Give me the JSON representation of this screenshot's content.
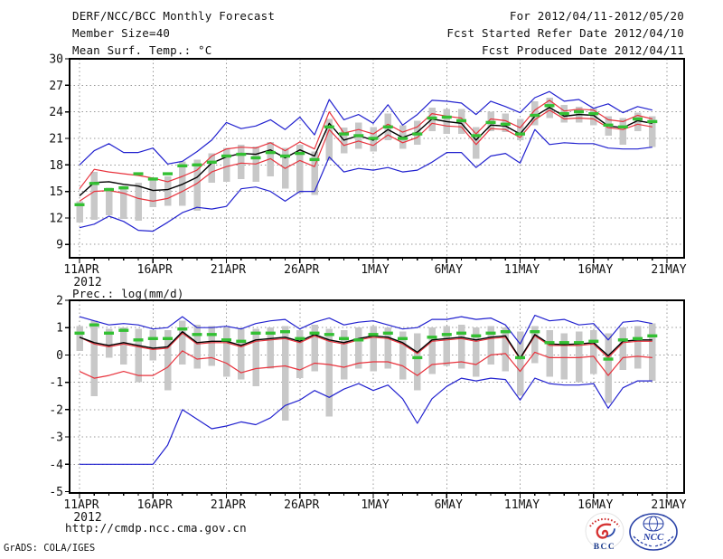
{
  "header": {
    "title": "DERF/NCC/BCC Monthly Forecast",
    "member_size": "Member Size=40",
    "for_range": "For 2012/04/11-2012/05/20",
    "fcst_started": "Fcst Started Refer Date 2012/04/10",
    "fcst_produced": "Fcst Produced Date 2012/04/11"
  },
  "footer": {
    "url": "http://cmdp.ncc.cma.gov.cn",
    "grads_credit": "GrADS: COLA/IGES",
    "logos": [
      {
        "label": "BCC"
      },
      {
        "label": "NCC"
      }
    ]
  },
  "colors": {
    "line_blue": "#2121cf",
    "line_red": "#e8323c",
    "line_black": "#000000",
    "dash_green": "#33c033",
    "spread_bar": "#c8c8c8",
    "grid": "#999999",
    "frame": "#000000"
  },
  "chart_data": [
    {
      "type": "line",
      "name": "temperature",
      "title": "Mean Surf. Temp.: °C",
      "x_year_label": "2012",
      "x_tick_labels": [
        "11APR",
        "16APR",
        "21APR",
        "26APR",
        "1MAY",
        "6MAY",
        "11MAY",
        "16MAY",
        "21MAY"
      ],
      "x_tick_days": [
        0,
        5,
        10,
        15,
        20,
        25,
        30,
        35,
        40
      ],
      "n_days": 40,
      "ylim": [
        7.49,
        30
      ],
      "yticks": [
        9,
        12,
        15,
        18,
        21,
        24,
        27,
        30
      ],
      "grid": true,
      "legend_position": "none",
      "series": [
        {
          "name": "ensemble-max",
          "color": "#2121cf",
          "width": 1.2,
          "values": [
            18.0,
            19.6,
            20.4,
            19.4,
            19.4,
            19.9,
            18.1,
            18.4,
            19.5,
            20.8,
            22.8,
            22.1,
            22.4,
            23.1,
            22.0,
            23.4,
            21.4,
            25.4,
            23.1,
            23.7,
            22.7,
            24.8,
            22.5,
            23.7,
            25.3,
            25.2,
            25.0,
            23.7,
            25.2,
            24.6,
            23.9,
            25.6,
            26.3,
            25.2,
            25.4,
            24.4,
            24.9,
            23.9,
            24.6,
            24.2
          ]
        },
        {
          "name": "ensemble-min",
          "color": "#2121cf",
          "width": 1.2,
          "values": [
            10.9,
            11.3,
            12.2,
            11.6,
            10.6,
            10.5,
            11.5,
            12.6,
            13.2,
            13.0,
            13.3,
            15.3,
            15.5,
            15.0,
            13.9,
            15.0,
            15.0,
            18.9,
            17.2,
            17.6,
            17.4,
            17.7,
            17.2,
            17.4,
            18.3,
            19.4,
            19.4,
            17.7,
            19.0,
            19.3,
            18.2,
            22.0,
            20.3,
            20.5,
            20.4,
            20.4,
            19.9,
            19.8,
            19.8,
            20.0
          ]
        },
        {
          "name": "upper-quartile",
          "color": "#e8323c",
          "width": 1.2,
          "values": [
            15.3,
            17.5,
            17.2,
            17.0,
            16.8,
            16.5,
            16.1,
            16.7,
            17.4,
            19.0,
            19.8,
            20.0,
            19.9,
            20.5,
            19.6,
            20.6,
            19.8,
            24.0,
            21.6,
            22.0,
            21.5,
            22.6,
            21.7,
            22.3,
            23.8,
            23.5,
            23.3,
            21.5,
            23.2,
            23.0,
            22.2,
            24.2,
            25.3,
            24.1,
            24.3,
            24.2,
            23.1,
            22.9,
            23.6,
            23.2
          ]
        },
        {
          "name": "lower-quartile",
          "color": "#e8323c",
          "width": 1.2,
          "values": [
            13.9,
            15.0,
            15.1,
            14.8,
            14.2,
            13.9,
            14.2,
            15.0,
            15.9,
            17.2,
            17.8,
            18.2,
            18.1,
            18.7,
            17.6,
            18.5,
            17.8,
            22.0,
            20.2,
            20.7,
            20.2,
            21.4,
            20.5,
            21.1,
            22.7,
            22.4,
            22.3,
            20.3,
            22.1,
            22.0,
            21.1,
            23.1,
            24.2,
            23.2,
            23.3,
            23.2,
            22.2,
            22.0,
            22.6,
            22.3
          ]
        },
        {
          "name": "ensemble-mean",
          "color": "#000000",
          "width": 1.4,
          "values": [
            14.5,
            16.0,
            16.1,
            15.8,
            15.6,
            15.1,
            15.2,
            15.8,
            16.6,
            18.2,
            18.9,
            19.3,
            19.2,
            19.7,
            18.8,
            19.7,
            19.0,
            22.7,
            20.8,
            21.3,
            20.8,
            22.0,
            21.1,
            21.7,
            23.2,
            22.9,
            22.7,
            20.8,
            22.5,
            22.4,
            21.5,
            23.5,
            24.5,
            23.5,
            23.7,
            23.6,
            22.4,
            22.2,
            23.0,
            22.7
          ]
        },
        {
          "name": "ensemble-median",
          "color": "#33c033",
          "style": "dashes",
          "width": 3.4,
          "values": [
            13.5,
            15.9,
            15.2,
            15.4,
            17.0,
            16.4,
            17.0,
            17.9,
            18.0,
            18.3,
            19.0,
            19.2,
            18.8,
            19.4,
            19.0,
            19.3,
            18.6,
            22.3,
            21.5,
            21.3,
            21.0,
            22.3,
            21.0,
            21.5,
            23.3,
            23.4,
            23.0,
            21.3,
            22.8,
            22.6,
            21.5,
            23.6,
            24.7,
            23.8,
            24.0,
            23.8,
            22.5,
            22.3,
            23.2,
            22.9
          ]
        }
      ],
      "bars": {
        "name": "member-spread",
        "low": [
          11.5,
          11.8,
          12.3,
          11.9,
          11.7,
          13.2,
          13.4,
          13.4,
          12.8,
          16.0,
          16.1,
          16.4,
          16.1,
          16.7,
          15.3,
          14.8,
          14.6,
          18.5,
          19.3,
          19.8,
          19.5,
          20.8,
          19.8,
          20.3,
          21.8,
          21.5,
          21.5,
          18.7,
          21.8,
          21.7,
          20.8,
          22.5,
          23.3,
          22.8,
          22.8,
          22.5,
          21.3,
          20.3,
          21.8,
          20.0
        ],
        "high": [
          13.9,
          17.2,
          15.4,
          15.6,
          16.0,
          16.3,
          16.7,
          18.4,
          18.6,
          19.3,
          19.9,
          20.3,
          20.1,
          20.6,
          19.9,
          20.3,
          19.5,
          23.2,
          22.2,
          22.8,
          22.3,
          23.8,
          22.5,
          23.0,
          24.5,
          24.3,
          24.3,
          22.3,
          24.0,
          23.8,
          23.2,
          25.2,
          25.6,
          24.8,
          24.6,
          24.4,
          23.5,
          23.3,
          23.9,
          23.5
        ]
      }
    },
    {
      "type": "line",
      "name": "precipitation",
      "title": "Prec.: log(mm/d)",
      "x_year_label": "2012",
      "x_tick_labels": [
        "11APR",
        "16APR",
        "21APR",
        "26APR",
        "1MAY",
        "6MAY",
        "11MAY",
        "16MAY",
        "21MAY"
      ],
      "x_tick_days": [
        0,
        5,
        10,
        15,
        20,
        25,
        30,
        35,
        40
      ],
      "n_days": 40,
      "ylim": [
        -5.05,
        2
      ],
      "yticks": [
        -5,
        -4,
        -3,
        -2,
        -1,
        0,
        1,
        2
      ],
      "grid": true,
      "legend_position": "none",
      "series": [
        {
          "name": "ensemble-max",
          "color": "#2121cf",
          "width": 1.2,
          "values": [
            1.4,
            1.25,
            1.1,
            1.15,
            1.1,
            0.95,
            1.0,
            1.4,
            1.0,
            1.0,
            1.05,
            0.95,
            1.15,
            1.25,
            1.3,
            0.95,
            1.2,
            1.35,
            1.1,
            1.2,
            1.25,
            1.1,
            0.95,
            1.0,
            1.3,
            1.3,
            1.4,
            1.3,
            1.35,
            1.1,
            0.4,
            1.45,
            1.25,
            1.3,
            1.1,
            1.15,
            0.55,
            1.2,
            1.25,
            1.15
          ]
        },
        {
          "name": "ensemble-min",
          "color": "#2121cf",
          "width": 1.2,
          "values": [
            -4.0,
            -4.0,
            -4.0,
            -4.0,
            -4.0,
            -4.0,
            -3.3,
            -2.0,
            -2.35,
            -2.7,
            -2.6,
            -2.45,
            -2.55,
            -2.3,
            -1.85,
            -1.65,
            -1.3,
            -1.55,
            -1.25,
            -1.05,
            -1.3,
            -1.1,
            -1.6,
            -2.5,
            -1.6,
            -1.15,
            -0.85,
            -0.95,
            -0.85,
            -0.9,
            -1.65,
            -0.85,
            -1.05,
            -1.1,
            -1.1,
            -1.05,
            -1.95,
            -1.2,
            -0.95,
            -0.95
          ]
        },
        {
          "name": "upper-quartile",
          "color": "#e8323c",
          "width": 1.2,
          "values": [
            0.65,
            0.4,
            0.3,
            0.4,
            0.3,
            0.2,
            0.25,
            0.8,
            0.4,
            0.45,
            0.45,
            0.3,
            0.5,
            0.55,
            0.6,
            0.45,
            0.7,
            0.5,
            0.4,
            0.55,
            0.65,
            0.6,
            0.4,
            0.05,
            0.5,
            0.55,
            0.6,
            0.5,
            0.6,
            0.65,
            -0.15,
            0.7,
            0.35,
            0.35,
            0.35,
            0.4,
            -0.1,
            0.45,
            0.5,
            0.5
          ]
        },
        {
          "name": "lower-quartile",
          "color": "#e8323c",
          "width": 1.2,
          "values": [
            -0.6,
            -0.85,
            -0.75,
            -0.6,
            -0.75,
            -0.75,
            -0.45,
            0.15,
            -0.15,
            -0.1,
            -0.3,
            -0.65,
            -0.5,
            -0.45,
            -0.4,
            -0.55,
            -0.3,
            -0.35,
            -0.45,
            -0.3,
            -0.25,
            -0.25,
            -0.4,
            -0.75,
            -0.35,
            -0.3,
            -0.25,
            -0.35,
            0.0,
            0.05,
            -0.6,
            0.1,
            -0.1,
            -0.1,
            -0.1,
            -0.05,
            -0.75,
            -0.1,
            -0.05,
            -0.1
          ]
        },
        {
          "name": "ensemble-mean",
          "color": "#000000",
          "width": 1.4,
          "values": [
            0.65,
            0.45,
            0.35,
            0.45,
            0.35,
            0.25,
            0.3,
            0.85,
            0.45,
            0.5,
            0.5,
            0.35,
            0.55,
            0.6,
            0.65,
            0.5,
            0.75,
            0.55,
            0.45,
            0.6,
            0.7,
            0.65,
            0.45,
            0.1,
            0.55,
            0.6,
            0.65,
            0.55,
            0.65,
            0.7,
            -0.12,
            0.75,
            0.4,
            0.38,
            0.4,
            0.45,
            -0.03,
            0.5,
            0.55,
            0.55
          ]
        },
        {
          "name": "ensemble-median",
          "color": "#33c033",
          "style": "dashes",
          "width": 3.4,
          "values": [
            0.8,
            1.1,
            0.8,
            0.9,
            0.55,
            0.6,
            0.6,
            0.95,
            0.75,
            0.75,
            0.55,
            0.5,
            0.8,
            0.8,
            0.85,
            0.6,
            0.8,
            0.75,
            0.6,
            0.55,
            0.75,
            0.8,
            0.6,
            -0.1,
            0.65,
            0.75,
            0.8,
            0.7,
            0.8,
            0.85,
            -0.1,
            0.85,
            0.45,
            0.45,
            0.45,
            0.5,
            -0.15,
            0.55,
            0.6,
            0.7
          ]
        }
      ],
      "bars": {
        "name": "member-spread",
        "low": [
          0.15,
          -1.5,
          -0.1,
          -0.35,
          -1.0,
          -0.2,
          -1.3,
          -0.35,
          -0.5,
          -0.4,
          -0.8,
          -0.9,
          -1.15,
          -0.5,
          -2.4,
          -0.85,
          -0.6,
          -2.25,
          -0.9,
          -0.5,
          -0.6,
          -0.5,
          -0.9,
          -1.3,
          -0.7,
          -0.4,
          -0.5,
          -0.8,
          -0.35,
          -0.6,
          -1.5,
          -0.3,
          -0.8,
          -0.9,
          -1.0,
          -0.7,
          -1.75,
          -0.55,
          -0.5,
          -0.95
        ],
        "high": [
          1.05,
          1.25,
          0.95,
          1.0,
          0.95,
          0.9,
          0.9,
          1.25,
          1.1,
          1.05,
          1.0,
          0.95,
          0.95,
          1.0,
          1.05,
          0.9,
          1.1,
          0.95,
          0.9,
          1.0,
          1.05,
          1.0,
          0.85,
          0.8,
          1.0,
          1.05,
          1.1,
          1.0,
          1.05,
          1.0,
          0.85,
          1.05,
          0.9,
          0.8,
          0.85,
          0.9,
          0.8,
          1.0,
          1.05,
          1.15
        ]
      }
    }
  ]
}
